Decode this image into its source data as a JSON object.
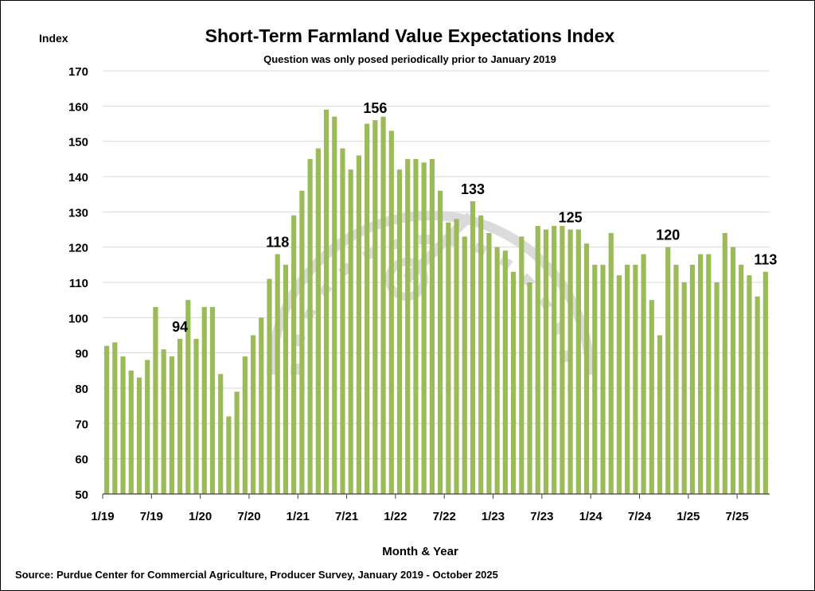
{
  "chart_data": {
    "type": "bar",
    "title": "Short-Term Farmland Value Expectations Index",
    "subtitle": "Question was only posed periodically prior to January 2019",
    "ylabel": "Index",
    "xlabel": "Month & Year",
    "source": "Source: Purdue Center for Commercial Agriculture, Producer Survey, January 2019 - October 2025",
    "watermark": "AG ECONOMY BAROMETER",
    "ylim": [
      50,
      170
    ],
    "yticks": [
      50,
      60,
      70,
      80,
      90,
      100,
      110,
      120,
      130,
      140,
      150,
      160,
      170
    ],
    "xtick_labels": [
      "1/19",
      "7/19",
      "1/20",
      "7/20",
      "1/21",
      "7/21",
      "1/22",
      "7/22",
      "1/23",
      "7/23",
      "1/24",
      "7/24",
      "1/25",
      "7/25"
    ],
    "grid": true,
    "bar_color": "#9bbb59",
    "categories_start": "1/19",
    "categories_end": "10/25",
    "values": [
      92,
      93,
      89,
      85,
      83,
      88,
      103,
      91,
      89,
      94,
      105,
      94,
      103,
      103,
      84,
      72,
      79,
      89,
      95,
      100,
      111,
      118,
      115,
      129,
      136,
      145,
      148,
      159,
      157,
      148,
      142,
      146,
      155,
      156,
      157,
      153,
      142,
      145,
      145,
      144,
      145,
      136,
      127,
      128,
      123,
      133,
      129,
      124,
      120,
      119,
      113,
      123,
      110,
      126,
      125,
      126,
      126,
      125,
      125,
      121,
      115,
      115,
      124,
      112,
      115,
      115,
      118,
      105,
      95,
      120,
      115,
      110,
      115,
      118,
      118,
      110,
      124,
      120,
      115,
      112,
      106,
      113
    ],
    "data_labels": [
      {
        "index": 9,
        "text": "94"
      },
      {
        "index": 21,
        "text": "118"
      },
      {
        "index": 33,
        "text": "156"
      },
      {
        "index": 45,
        "text": "133"
      },
      {
        "index": 57,
        "text": "125"
      },
      {
        "index": 69,
        "text": "120"
      },
      {
        "index": 81,
        "text": "113"
      }
    ]
  }
}
